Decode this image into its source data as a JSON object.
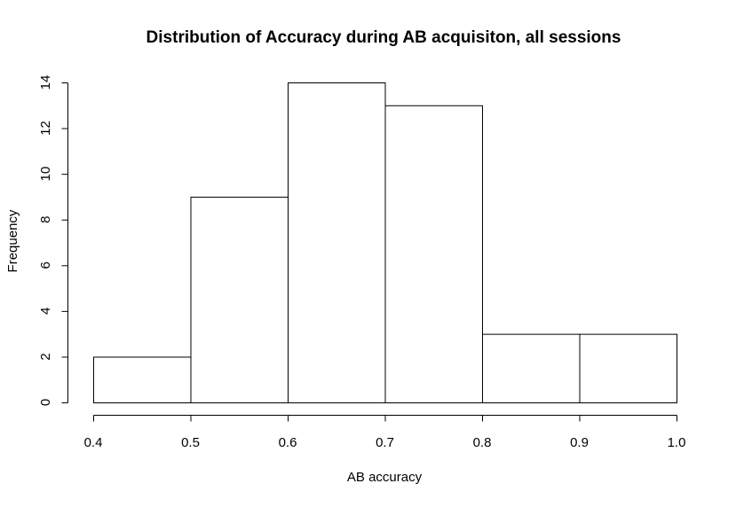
{
  "chart_data": {
    "type": "bar",
    "title": "Distribution of Accuracy during AB acquisiton, all sessions",
    "xlabel": "AB accuracy",
    "ylabel": "Frequency",
    "bins": [
      {
        "start": 0.4,
        "end": 0.5,
        "count": 2
      },
      {
        "start": 0.5,
        "end": 0.6,
        "count": 9
      },
      {
        "start": 0.6,
        "end": 0.7,
        "count": 14
      },
      {
        "start": 0.7,
        "end": 0.8,
        "count": 13
      },
      {
        "start": 0.8,
        "end": 0.9,
        "count": 3
      },
      {
        "start": 0.9,
        "end": 1.0,
        "count": 3
      }
    ],
    "xlim": [
      0.4,
      1.0
    ],
    "ylim": [
      0,
      14
    ],
    "x_ticks": [
      "0.4",
      "0.5",
      "0.6",
      "0.7",
      "0.8",
      "0.9",
      "1.0"
    ],
    "y_ticks": [
      "0",
      "2",
      "4",
      "6",
      "8",
      "10",
      "12",
      "14"
    ],
    "grid": false,
    "legend": "none",
    "colors": {
      "bar_fill": "#ffffff",
      "bar_stroke": "#000000",
      "text": "#000000"
    }
  }
}
